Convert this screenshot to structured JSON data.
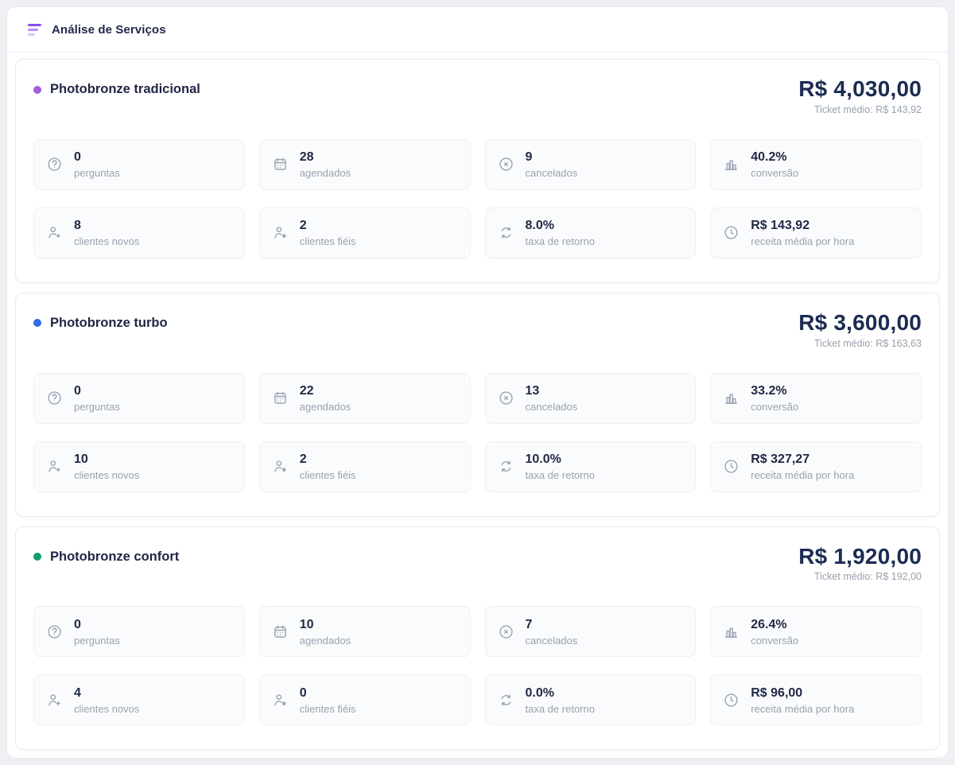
{
  "header": {
    "title": "Análise de Serviços",
    "icon": "filter-lines-icon"
  },
  "colors": {
    "tradicional_dot": "#a15ce0",
    "turbo_dot": "#2f6ae8",
    "confort_dot": "#0f9d6c"
  },
  "services": [
    {
      "name": "Photobronze tradicional",
      "dot_color": "#a15ce0",
      "total": "R$ 4,030,00",
      "ticket_medio": "Ticket médio: R$ 143,92",
      "stats": [
        {
          "icon": "question-circle-icon",
          "value": "0",
          "label": "perguntas"
        },
        {
          "icon": "calendar-icon",
          "value": "28",
          "label": "agendados"
        },
        {
          "icon": "x-circle-icon",
          "value": "9",
          "label": "cancelados"
        },
        {
          "icon": "bar-chart-icon",
          "value": "40.2%",
          "label": "conversão"
        },
        {
          "icon": "user-plus-icon",
          "value": "8",
          "label": "clientes novos"
        },
        {
          "icon": "user-star-icon",
          "value": "2",
          "label": "clientes fiéis"
        },
        {
          "icon": "refresh-icon",
          "value": "8.0%",
          "label": "taxa de retorno"
        },
        {
          "icon": "clock-icon",
          "value": "R$ 143,92",
          "label": "receita média por hora"
        }
      ]
    },
    {
      "name": "Photobronze turbo",
      "dot_color": "#2f6ae8",
      "total": "R$ 3,600,00",
      "ticket_medio": "Ticket médio: R$ 163,63",
      "stats": [
        {
          "icon": "question-circle-icon",
          "value": "0",
          "label": "perguntas"
        },
        {
          "icon": "calendar-icon",
          "value": "22",
          "label": "agendados"
        },
        {
          "icon": "x-circle-icon",
          "value": "13",
          "label": "cancelados"
        },
        {
          "icon": "bar-chart-icon",
          "value": "33.2%",
          "label": "conversão"
        },
        {
          "icon": "user-plus-icon",
          "value": "10",
          "label": "clientes novos"
        },
        {
          "icon": "user-star-icon",
          "value": "2",
          "label": "clientes fiéis"
        },
        {
          "icon": "refresh-icon",
          "value": "10.0%",
          "label": "taxa de retorno"
        },
        {
          "icon": "clock-icon",
          "value": "R$ 327,27",
          "label": "receita média por hora"
        }
      ]
    },
    {
      "name": "Photobronze confort",
      "dot_color": "#0f9d6c",
      "total": "R$ 1,920,00",
      "ticket_medio": "Ticket médio: R$ 192,00",
      "stats": [
        {
          "icon": "question-circle-icon",
          "value": "0",
          "label": "perguntas"
        },
        {
          "icon": "calendar-icon",
          "value": "10",
          "label": "agendados"
        },
        {
          "icon": "x-circle-icon",
          "value": "7",
          "label": "cancelados"
        },
        {
          "icon": "bar-chart-icon",
          "value": "26.4%",
          "label": "conversão"
        },
        {
          "icon": "user-plus-icon",
          "value": "4",
          "label": "clientes novos"
        },
        {
          "icon": "user-star-icon",
          "value": "0",
          "label": "clientes fiéis"
        },
        {
          "icon": "refresh-icon",
          "value": "0.0%",
          "label": "taxa de retorno"
        },
        {
          "icon": "clock-icon",
          "value": "R$ 96,00",
          "label": "receita média por hora"
        }
      ]
    }
  ]
}
